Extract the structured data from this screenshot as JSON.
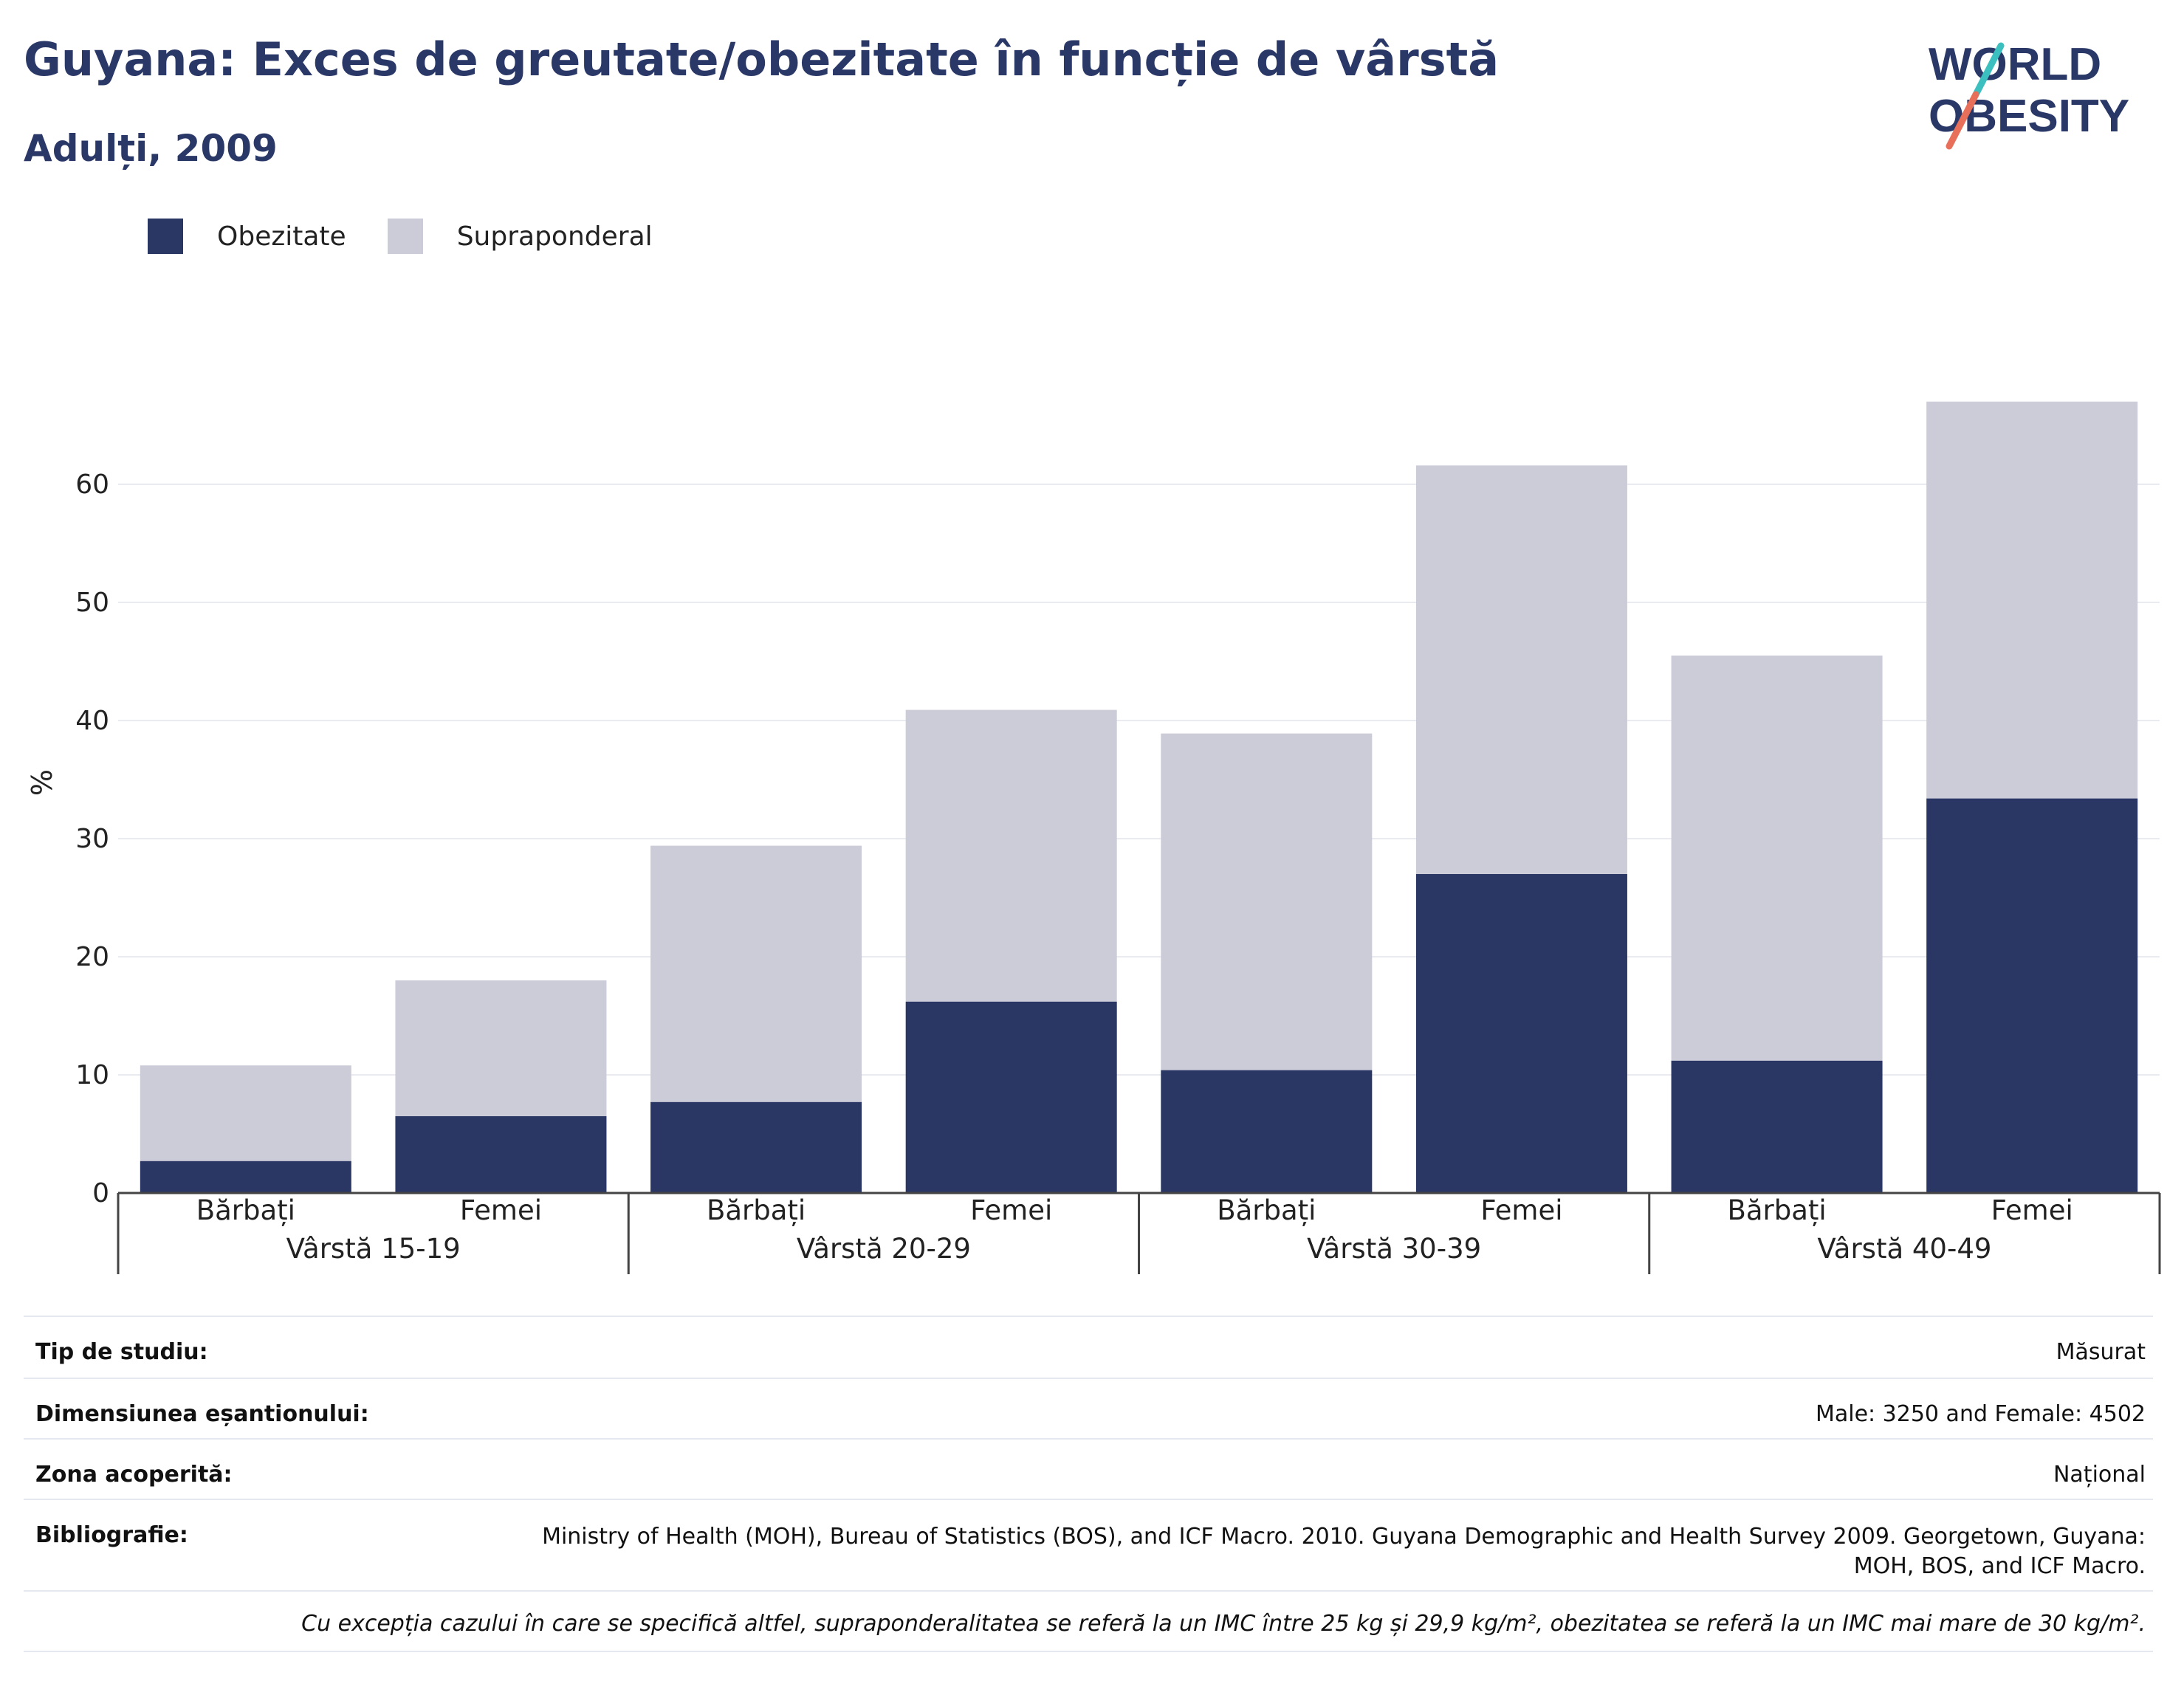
{
  "header": {
    "title": "Guyana: Exces de greutate/obezitate în funcție de vârstă",
    "subtitle": "Adulți, 2009"
  },
  "logo": {
    "line1": "WORLD",
    "line2": "OBESITY",
    "accent_teal": "#3bbfbf",
    "accent_coral": "#e8705a"
  },
  "colors": {
    "obesity": "#2a3663",
    "overweight": "#cbccd8",
    "brand": "#2a3868"
  },
  "chart_data": {
    "type": "bar",
    "stacked": true,
    "ylabel": "%",
    "ylim": [
      0,
      67
    ],
    "yticks": [
      0,
      10,
      20,
      30,
      40,
      50,
      60
    ],
    "grid": true,
    "legend_position": "top-left",
    "groups": [
      "Vârstă 15-19",
      "Vârstă 20-29",
      "Vârstă 30-39",
      "Vârstă 40-49"
    ],
    "categories": [
      "Bărbați",
      "Femei",
      "Bărbați",
      "Femei",
      "Bărbați",
      "Femei",
      "Bărbați",
      "Femei"
    ],
    "series": [
      {
        "name": "Obezitate",
        "values": [
          2.7,
          6.5,
          7.7,
          16.2,
          10.4,
          27.0,
          11.2,
          33.4
        ]
      },
      {
        "name": "Supraponderal",
        "values": [
          8.1,
          11.5,
          21.7,
          24.7,
          28.5,
          34.6,
          34.3,
          33.6
        ]
      }
    ]
  },
  "info": {
    "rows": [
      {
        "label": "Tip de studiu:",
        "value": "Măsurat"
      },
      {
        "label": "Dimensiunea eșantionului:",
        "value": "Male: 3250 and Female: 4502"
      },
      {
        "label": "Zona acoperită:",
        "value": "Național"
      },
      {
        "label": "Bibliografie:",
        "value": "Ministry of Health (MOH), Bureau of Statistics (BOS), and ICF Macro. 2010. Guyana Demographic and Health Survey 2009. Georgetown, Guyana: MOH, BOS, and ICF Macro."
      }
    ],
    "note": "Cu excepția cazului în care se specifică altfel, supraponderalitatea se referă la un IMC între 25 kg și 29,9 kg/m², obezitatea se referă la un IMC mai mare de 30 kg/m²."
  }
}
